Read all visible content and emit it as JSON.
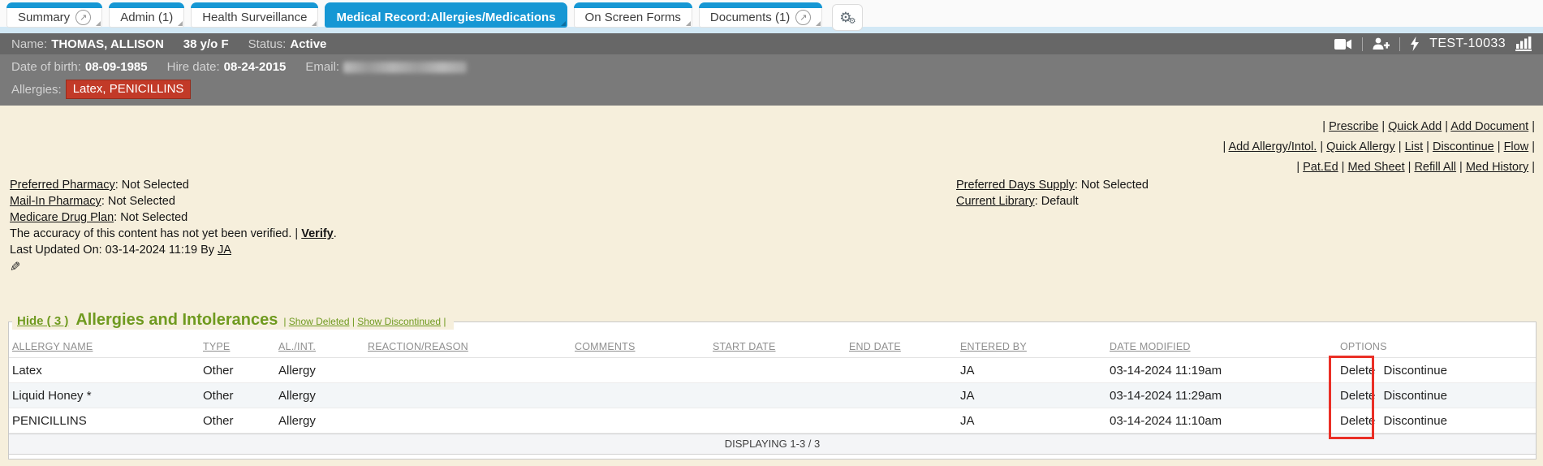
{
  "colors": {
    "accent_blue": "#1697d4",
    "bar_gray": "#7a7a7a",
    "badge_red": "#c23a28",
    "heading_green": "#6f9a1f",
    "highlight_red": "#ea2f26",
    "cream_bg": "#f6efdc"
  },
  "icons": {
    "tab_external_glyph": "↗",
    "gear_glyph": "⚙",
    "pencil_glyph": "✎"
  },
  "tabs": {
    "items": [
      {
        "label": "Summary",
        "active": false,
        "has_external_icon": true
      },
      {
        "label": "Admin (1)",
        "active": false,
        "has_external_icon": false
      },
      {
        "label": "Health Surveillance",
        "active": false,
        "has_external_icon": false
      },
      {
        "label": "Medical Record:Allergies/Medications",
        "active": true,
        "has_external_icon": false
      },
      {
        "label": "On Screen Forms",
        "active": false,
        "has_external_icon": false
      },
      {
        "label": "Documents (1)",
        "active": false,
        "has_external_icon": true
      }
    ]
  },
  "patient_bar": {
    "name_label": "Name:",
    "name": "THOMAS, ALLISON",
    "age_sex": "38 y/o F",
    "status_label": "Status:",
    "status": "Active",
    "patient_id": "TEST-10033"
  },
  "info_bar": {
    "dob_label": "Date of birth:",
    "dob": "08-09-1985",
    "hire_label": "Hire date:",
    "hire_date": "08-24-2015",
    "email_label": "Email:",
    "allergies_label": "Allergies:",
    "allergies_badge": "Latex, PENICILLINS"
  },
  "actions": {
    "rows": [
      [
        "Prescribe",
        "Quick Add",
        "Add Document"
      ],
      [
        "Add Allergy/Intol.",
        "Quick Allergy",
        "List",
        "Discontinue",
        "Flow"
      ],
      [
        "Pat.Ed",
        "Med Sheet",
        "Refill All",
        "Med History"
      ]
    ]
  },
  "meta": {
    "preferred_pharmacy_label": "Preferred Pharmacy",
    "preferred_pharmacy_value": ": Not Selected",
    "mail_in_pharmacy_label": "Mail-In Pharmacy",
    "mail_in_pharmacy_value": ": Not Selected",
    "medicare_drug_plan_label": "Medicare Drug Plan",
    "medicare_drug_plan_value": ": Not Selected",
    "verify_text": "The accuracy of this content has not yet been verified.",
    "verify_sep": " | ",
    "verify_link": "Verify",
    "verify_period": ".",
    "last_updated_text": "Last Updated On: 03-14-2024 11:19 By ",
    "last_updated_by": "JA",
    "preferred_days_supply_label": "Preferred Days Supply",
    "preferred_days_supply_value": ": Not Selected",
    "current_library_label": "Current Library",
    "current_library_value": ": Default"
  },
  "allergy_section": {
    "hide_label": "Hide ( 3 )",
    "title": "Allergies and Intolerances",
    "legend_links": [
      "Show Deleted",
      "Show Discontinued"
    ]
  },
  "allergy_table": {
    "headers": [
      "ALLERGY NAME",
      "TYPE",
      "AL./INT.",
      "REACTION/REASON",
      "COMMENTS",
      "START DATE",
      "END DATE",
      "ENTERED BY",
      "DATE MODIFIED",
      "OPTIONS"
    ],
    "options": {
      "delete": "Delete",
      "discontinue": "Discontinue"
    },
    "rows": [
      {
        "allergy_name": "Latex",
        "type": "Other",
        "al_int": "Allergy",
        "reaction": "",
        "comments": "",
        "start_date": "",
        "end_date": "",
        "entered_by": "JA",
        "date_modified": "03-14-2024 11:19am"
      },
      {
        "allergy_name": "Liquid Honey *",
        "type": "Other",
        "al_int": "Allergy",
        "reaction": "",
        "comments": "",
        "start_date": "",
        "end_date": "",
        "entered_by": "JA",
        "date_modified": "03-14-2024 11:29am"
      },
      {
        "allergy_name": "PENICILLINS",
        "type": "Other",
        "al_int": "Allergy",
        "reaction": "",
        "comments": "",
        "start_date": "",
        "end_date": "",
        "entered_by": "JA",
        "date_modified": "03-14-2024 11:10am"
      }
    ],
    "footer": "DISPLAYING 1-3 / 3"
  }
}
